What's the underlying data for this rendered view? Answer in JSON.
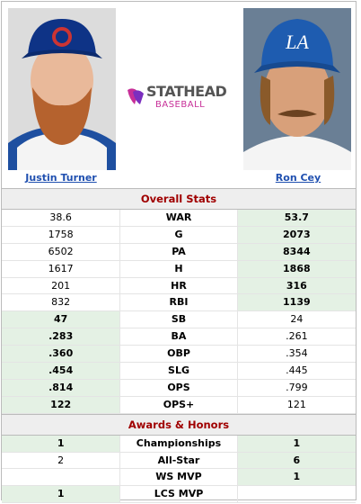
{
  "players": [
    {
      "name": "Justin Turner"
    },
    {
      "name": "Ron Cey"
    }
  ],
  "logo": {
    "title": "STATHEAD",
    "subtitle": "BASEBALL"
  },
  "sections": [
    {
      "title": "Overall Stats",
      "rows": [
        {
          "stat": "WAR",
          "left": "38.6",
          "right": "53.7",
          "winner": "right"
        },
        {
          "stat": "G",
          "left": "1758",
          "right": "2073",
          "winner": "right"
        },
        {
          "stat": "PA",
          "left": "6502",
          "right": "8344",
          "winner": "right"
        },
        {
          "stat": "H",
          "left": "1617",
          "right": "1868",
          "winner": "right"
        },
        {
          "stat": "HR",
          "left": "201",
          "right": "316",
          "winner": "right"
        },
        {
          "stat": "RBI",
          "left": "832",
          "right": "1139",
          "winner": "right"
        },
        {
          "stat": "SB",
          "left": "47",
          "right": "24",
          "winner": "left"
        },
        {
          "stat": "BA",
          "left": ".283",
          "right": ".261",
          "winner": "left"
        },
        {
          "stat": "OBP",
          "left": ".360",
          "right": ".354",
          "winner": "left"
        },
        {
          "stat": "SLG",
          "left": ".454",
          "right": ".445",
          "winner": "left"
        },
        {
          "stat": "OPS",
          "left": ".814",
          "right": ".799",
          "winner": "left"
        },
        {
          "stat": "OPS+",
          "left": "122",
          "right": "121",
          "winner": "left"
        }
      ]
    },
    {
      "title": "Awards & Honors",
      "rows": [
        {
          "stat": "Championships",
          "left": "1",
          "right": "1",
          "winner": "both"
        },
        {
          "stat": "All-Star",
          "left": "2",
          "right": "6",
          "winner": "right"
        },
        {
          "stat": "WS MVP",
          "left": null,
          "right": "1",
          "winner": "right"
        },
        {
          "stat": "LCS MVP",
          "left": "1",
          "right": null,
          "winner": "left"
        }
      ]
    }
  ]
}
